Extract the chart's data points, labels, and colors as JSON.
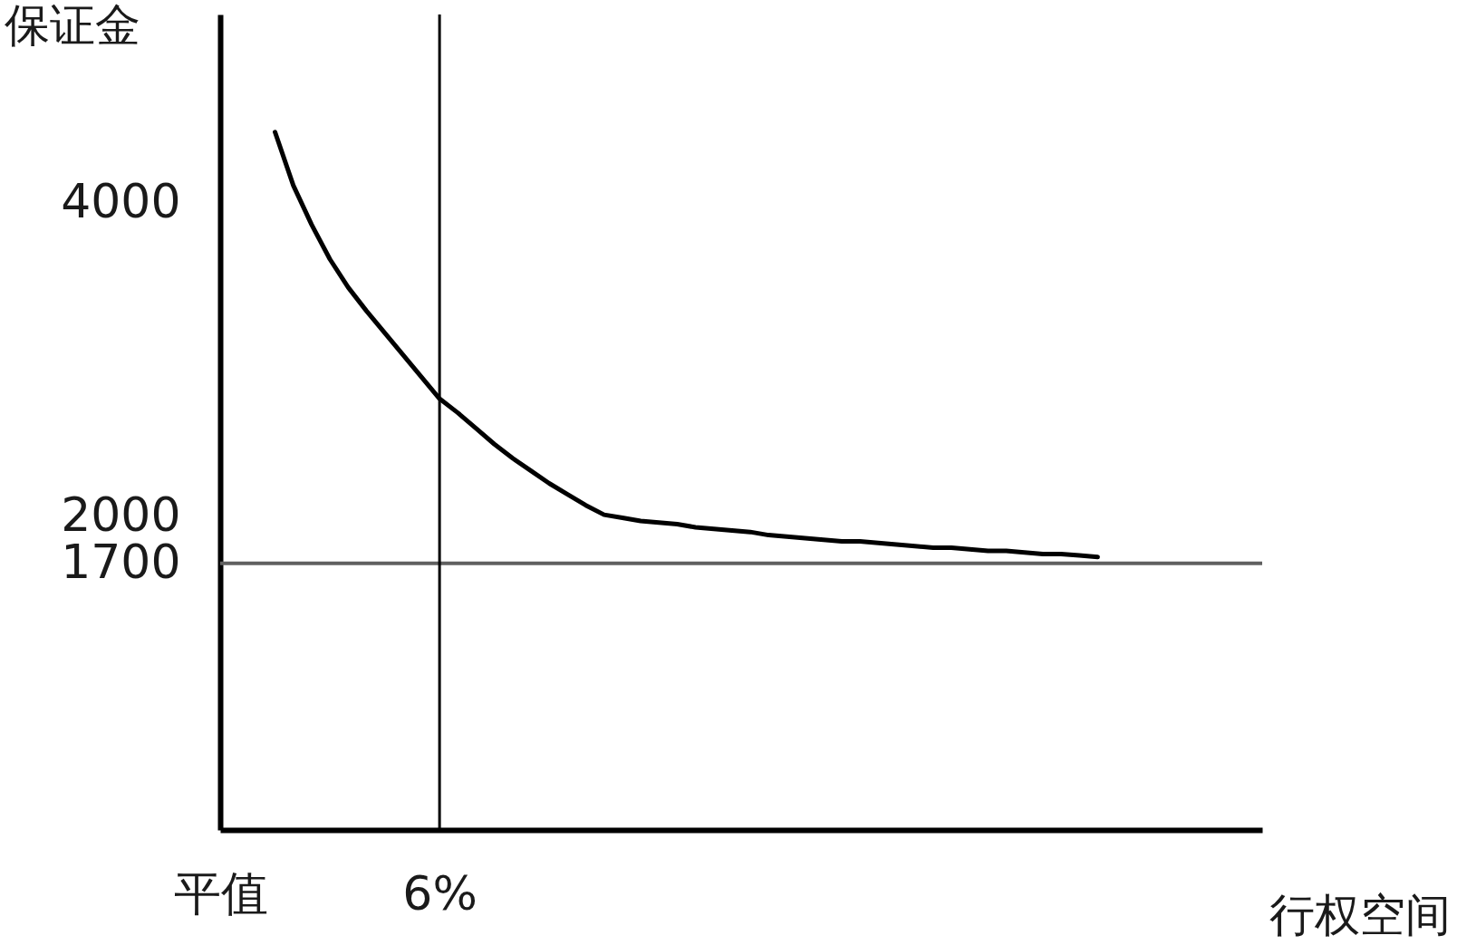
{
  "chart_data": {
    "type": "line",
    "xlabel": "行权空间",
    "ylabel": "保证金",
    "categories": [
      "平值",
      null,
      null,
      null,
      null,
      null,
      null,
      null,
      null,
      null,
      null,
      null,
      "6%",
      null,
      null,
      null,
      null,
      null,
      null,
      null,
      null,
      null,
      null,
      null,
      null,
      null,
      null,
      null,
      null,
      null,
      null,
      null,
      null,
      null,
      null,
      null,
      null,
      null,
      null,
      null,
      null,
      null,
      null,
      null,
      null,
      null,
      null,
      null,
      null,
      null,
      null,
      null,
      null,
      null,
      null,
      null,
      null,
      null
    ],
    "series": [
      {
        "color": "#000000",
        "values": [
          null,
          null,
          null,
          4450,
          4110,
          3860,
          3640,
          3460,
          3310,
          3170,
          3030,
          2890,
          2750,
          2660,
          2560,
          2460,
          2370,
          2290,
          2210,
          2140,
          2070,
          2010,
          1990,
          1970,
          1960,
          1950,
          1930,
          1920,
          1910,
          1900,
          1880,
          1870,
          1860,
          1850,
          1840,
          1840,
          1830,
          1820,
          1810,
          1800,
          1800,
          1790,
          1780,
          1780,
          1770,
          1760,
          1760,
          1750,
          1740,
          null,
          null,
          null,
          null,
          null,
          null,
          null,
          null,
          null
        ]
      }
    ],
    "ylim": [
      0,
      5200
    ],
    "yticks": [
      1700,
      2000,
      4000
    ],
    "ref_lines": [
      {
        "axis": "y",
        "value": 1700,
        "color": "#606060"
      },
      {
        "axis": "x",
        "value": "6%",
        "color": "#000000"
      }
    ]
  }
}
